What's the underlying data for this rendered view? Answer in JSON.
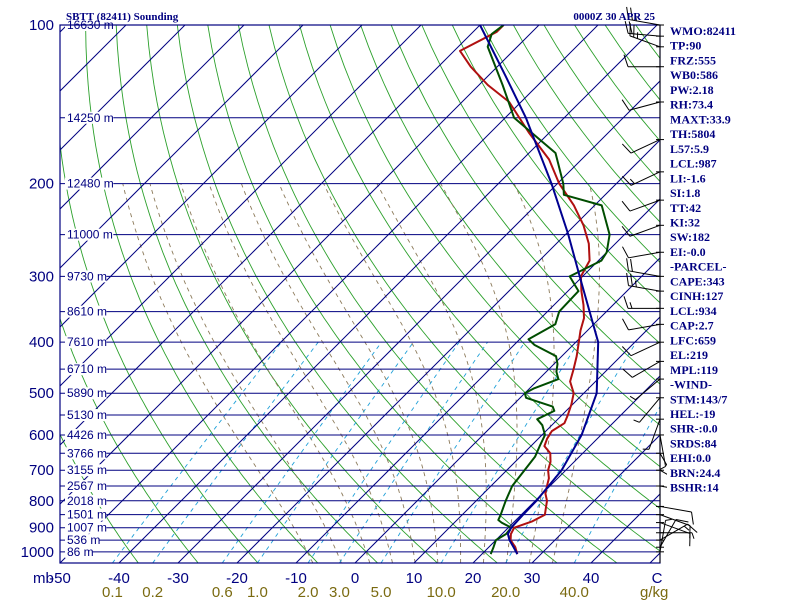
{
  "chart_data": {
    "type": "line",
    "title": "SBTT (82411) Sounding",
    "valid_time": "0000Z 30 APR 25",
    "pressure_axis": {
      "ticks": [
        100,
        200,
        300,
        400,
        500,
        600,
        700,
        800,
        900,
        1000
      ],
      "range": [
        100,
        1050
      ],
      "scale": "log"
    },
    "temperature_axis": {
      "unit_label": "mb",
      "ticks": [
        -50,
        -40,
        -30,
        -20,
        -10,
        0,
        10,
        20,
        30,
        40
      ],
      "end_label": "C",
      "range": [
        -50,
        50
      ]
    },
    "mixing_ratio_axis": {
      "label": "g/kg",
      "ticks": [
        "0.1",
        "0.2",
        "0.6",
        "1.0",
        "2.0",
        "3.0",
        "5.0",
        "10.0",
        "20.0",
        "40.0"
      ]
    },
    "height_labels": [
      {
        "p": 100,
        "label": "16630 m"
      },
      {
        "p": 150,
        "label": "14250 m"
      },
      {
        "p": 200,
        "label": "12480 m"
      },
      {
        "p": 250,
        "label": "11000 m"
      },
      {
        "p": 300,
        "label": "9730 m"
      },
      {
        "p": 350,
        "label": "8610 m"
      },
      {
        "p": 400,
        "label": "7610 m"
      },
      {
        "p": 450,
        "label": "6710 m"
      },
      {
        "p": 500,
        "label": "5890 m"
      },
      {
        "p": 550,
        "label": "5130 m"
      },
      {
        "p": 600,
        "label": "4426 m"
      },
      {
        "p": 650,
        "label": "3766 m"
      },
      {
        "p": 700,
        "label": "3155 m"
      },
      {
        "p": 750,
        "label": "2567 m"
      },
      {
        "p": 800,
        "label": "2018 m"
      },
      {
        "p": 850,
        "label": "1501 m"
      },
      {
        "p": 900,
        "label": "1007 m"
      },
      {
        "p": 950,
        "label": "536 m"
      },
      {
        "p": 1000,
        "label": "86 m"
      }
    ],
    "series": [
      {
        "color": "#b01010",
        "points": [
          [
            1010,
            26
          ],
          [
            980,
            24.5
          ],
          [
            950,
            22.5
          ],
          [
            925,
            21.5
          ],
          [
            900,
            21
          ],
          [
            875,
            23
          ],
          [
            850,
            24
          ],
          [
            825,
            23
          ],
          [
            800,
            22
          ],
          [
            775,
            20.5
          ],
          [
            750,
            19.5
          ],
          [
            725,
            18.5
          ],
          [
            700,
            17
          ],
          [
            675,
            16
          ],
          [
            650,
            14.5
          ],
          [
            630,
            12.3
          ],
          [
            610,
            11.5
          ],
          [
            590,
            11
          ],
          [
            570,
            11.8
          ],
          [
            550,
            11
          ],
          [
            525,
            9.8
          ],
          [
            500,
            8.3
          ],
          [
            475,
            5.7
          ],
          [
            450,
            4.2
          ],
          [
            425,
            2.5
          ],
          [
            400,
            0.5
          ],
          [
            380,
            -1.2
          ],
          [
            360,
            -2.7
          ],
          [
            340,
            -5
          ],
          [
            320,
            -7.7
          ],
          [
            300,
            -10.3
          ],
          [
            280,
            -11.5
          ],
          [
            260,
            -14.5
          ],
          [
            240,
            -18.5
          ],
          [
            220,
            -23.5
          ],
          [
            200,
            -29.7
          ],
          [
            180,
            -35.5
          ],
          [
            160,
            -43.5
          ],
          [
            140,
            -52
          ],
          [
            130,
            -58.5
          ],
          [
            120,
            -64.5
          ],
          [
            112,
            -69
          ],
          [
            103,
            -66
          ],
          [
            100,
            -66
          ]
        ]
      },
      {
        "color": "#004d00",
        "points": [
          [
            1010,
            21.5
          ],
          [
            980,
            20.8
          ],
          [
            950,
            20
          ],
          [
            925,
            20.7
          ],
          [
            900,
            20.5
          ],
          [
            880,
            18
          ],
          [
            870,
            17
          ],
          [
            850,
            16.5
          ],
          [
            800,
            15
          ],
          [
            750,
            13.6
          ],
          [
            700,
            13
          ],
          [
            660,
            12.5
          ],
          [
            630,
            11.5
          ],
          [
            600,
            10.5
          ],
          [
            575,
            8.4
          ],
          [
            560,
            6.5
          ],
          [
            540,
            8
          ],
          [
            530,
            7
          ],
          [
            520,
            4
          ],
          [
            510,
            1
          ],
          [
            500,
            0
          ],
          [
            490,
            0.7
          ],
          [
            470,
            3.3
          ],
          [
            455,
            1.7
          ],
          [
            440,
            0.6
          ],
          [
            425,
            -1
          ],
          [
            405,
            -6.5
          ],
          [
            395,
            -8.5
          ],
          [
            370,
            -6.5
          ],
          [
            350,
            -8
          ],
          [
            320,
            -8.2
          ],
          [
            300,
            -12.2
          ],
          [
            280,
            -9.5
          ],
          [
            270,
            -10
          ],
          [
            250,
            -12.5
          ],
          [
            220,
            -18.8
          ],
          [
            210,
            -27
          ],
          [
            200,
            -29
          ],
          [
            175,
            -35.5
          ],
          [
            150,
            -48.5
          ],
          [
            130,
            -56
          ],
          [
            110,
            -65
          ],
          [
            104,
            -66.5
          ],
          [
            100,
            -66
          ]
        ]
      },
      {
        "color": "#000090",
        "points": [
          [
            1010,
            26
          ],
          [
            980,
            24.2
          ],
          [
            950,
            22.3
          ],
          [
            925,
            21
          ],
          [
            900,
            20.5
          ],
          [
            850,
            20.3
          ],
          [
            800,
            20.2
          ],
          [
            700,
            19.3
          ],
          [
            600,
            16.7
          ],
          [
            500,
            12.2
          ],
          [
            400,
            3.8
          ],
          [
            300,
            -10.5
          ],
          [
            250,
            -19.5
          ],
          [
            200,
            -31
          ],
          [
            150,
            -46.5
          ],
          [
            125,
            -57
          ],
          [
            100,
            -70
          ]
        ]
      }
    ],
    "wind_barbs": [
      {
        "p": 100,
        "dir": 280,
        "spd": 25
      },
      {
        "p": 105,
        "dir": 275,
        "spd": 20
      },
      {
        "p": 110,
        "dir": 290,
        "spd": 25
      },
      {
        "p": 120,
        "dir": 270,
        "spd": 10
      },
      {
        "p": 140,
        "dir": 255,
        "spd": 10
      },
      {
        "p": 165,
        "dir": 245,
        "spd": 10
      },
      {
        "p": 190,
        "dir": 245,
        "spd": 15
      },
      {
        "p": 215,
        "dir": 250,
        "spd": 10
      },
      {
        "p": 240,
        "dir": 250,
        "spd": 10
      },
      {
        "p": 270,
        "dir": 260,
        "spd": 10
      },
      {
        "p": 300,
        "dir": 280,
        "spd": 20
      },
      {
        "p": 320,
        "dir": 280,
        "spd": 25
      },
      {
        "p": 345,
        "dir": 270,
        "spd": 15
      },
      {
        "p": 370,
        "dir": 260,
        "spd": 10
      },
      {
        "p": 400,
        "dir": 245,
        "spd": 10
      },
      {
        "p": 435,
        "dir": 240,
        "spd": 10
      },
      {
        "p": 470,
        "dir": 230,
        "spd": 5
      },
      {
        "p": 510,
        "dir": 220,
        "spd": 5
      },
      {
        "p": 560,
        "dir": 200,
        "spd": 5
      },
      {
        "p": 600,
        "dir": 170,
        "spd": 5
      },
      {
        "p": 650,
        "dir": 150,
        "spd": 5
      },
      {
        "p": 700,
        "dir": 120,
        "spd": 5
      },
      {
        "p": 750,
        "dir": 100,
        "spd": 5
      },
      {
        "p": 820,
        "dir": 100,
        "spd": 10
      },
      {
        "p": 850,
        "dir": 110,
        "spd": 10
      },
      {
        "p": 880,
        "dir": 110,
        "spd": 10
      },
      {
        "p": 920,
        "dir": 90,
        "spd": 5
      },
      {
        "p": 950,
        "dir": 60,
        "spd": 15
      },
      {
        "p": 980,
        "dir": 30,
        "spd": 10
      },
      {
        "p": 1000,
        "dir": 10,
        "spd": 5
      }
    ],
    "indices": [
      "WMO:82411",
      "TP:90",
      "FRZ:555",
      "WB0:586",
      "PW:2.18",
      "RH:73.4",
      "MAXT:33.9",
      "TH:5804",
      "L57:5.9",
      "LCL:987",
      "LI:-1.6",
      "SI:1.8",
      "TT:42",
      "KI:32",
      "SW:182",
      "EI:-0.0",
      "-PARCEL-",
      "CAPE:343",
      "CINH:127",
      "LCL:934",
      "CAP:2.7",
      "LFC:659",
      "EL:219",
      "MPL:119",
      "-WIND-",
      "STM:143/7",
      "HEL:-19",
      "SHR-:0.0",
      "SRDS:84",
      "EHI:0.0",
      "BRN:24.4",
      "BSHR:14"
    ],
    "colors": {
      "isobar": "#000080",
      "isotherm": "#000080",
      "dry_adiabat": "#2ca02c",
      "moist_adiabat": "#8c7a5a",
      "mixing_ratio": "#1fa0d8",
      "text": "#000080"
    }
  }
}
